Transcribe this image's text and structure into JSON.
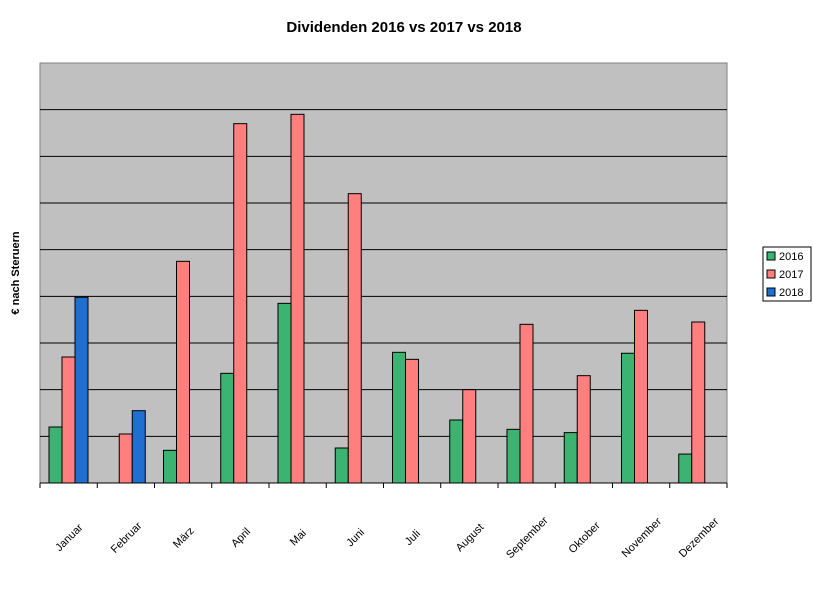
{
  "chart_data": {
    "type": "bar",
    "title": "Dividenden 2016 vs 2017 vs 2018",
    "xlabel": "",
    "ylabel": "€ nach Steruern",
    "categories": [
      "Januar",
      "Februar",
      "März",
      "April",
      "Mai",
      "Juni",
      "Juli",
      "August",
      "September",
      "Oktober",
      "November",
      "Dezember"
    ],
    "series": [
      {
        "name": "2016",
        "color": "#3cb371",
        "values": [
          1.2,
          null,
          0.7,
          2.35,
          3.85,
          0.75,
          2.8,
          1.35,
          1.15,
          1.08,
          2.78,
          0.62
        ]
      },
      {
        "name": "2017",
        "color": "#ff7f7f",
        "values": [
          2.7,
          1.05,
          4.75,
          7.7,
          7.9,
          6.2,
          2.65,
          2.0,
          3.4,
          2.3,
          3.7,
          3.45
        ]
      },
      {
        "name": "2018",
        "color": "#1f6fd1",
        "values": [
          3.98,
          1.55,
          null,
          null,
          null,
          null,
          null,
          null,
          null,
          null,
          null,
          null
        ]
      }
    ],
    "ylim": [
      0,
      9
    ],
    "grid": true,
    "y_ticks_shown": false,
    "plot_background": "#c0c0c0",
    "legend_position": "right"
  }
}
